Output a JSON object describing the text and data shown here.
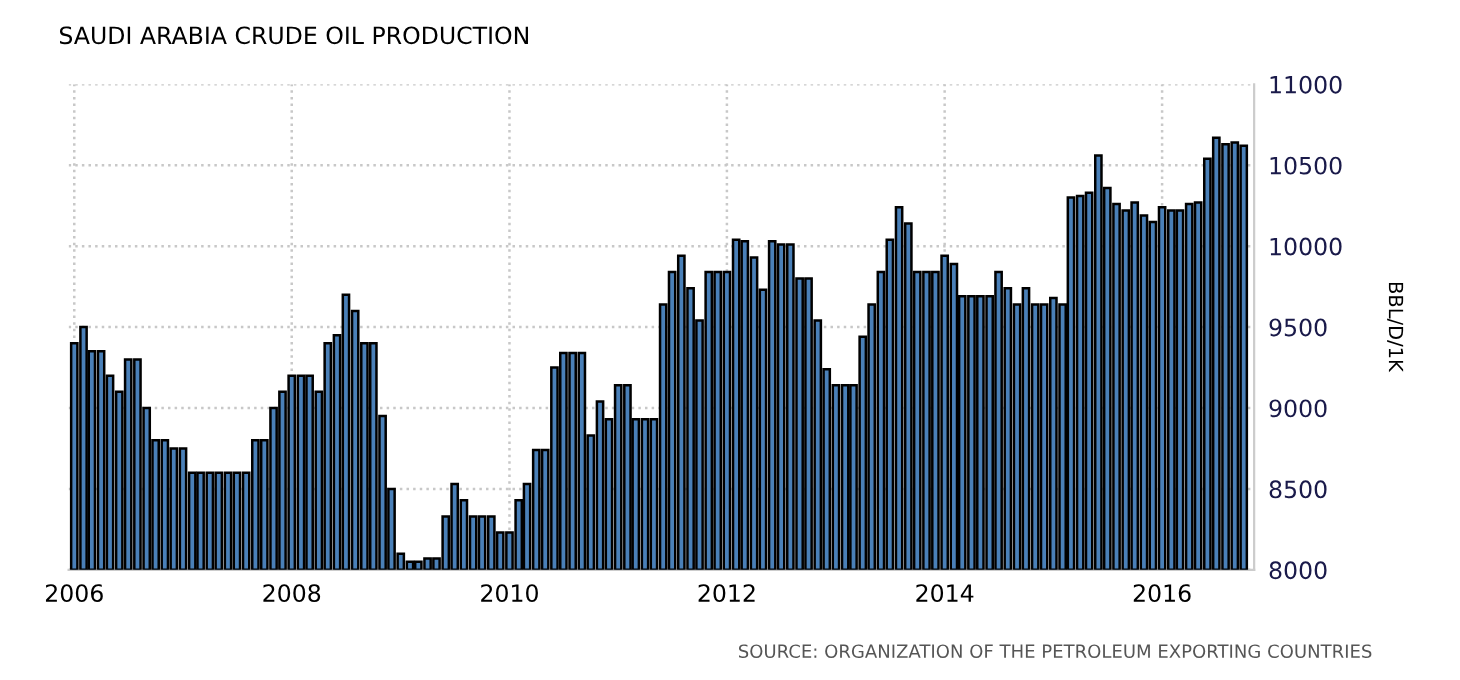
{
  "chart_data": {
    "type": "bar",
    "title": "SAUDI ARABIA CRUDE OIL PRODUCTION",
    "ylabel": "BBL/D/1K",
    "annotations": [
      "SOURCE: ORGANIZATION OF THE PETROLEUM EXPORTING COUNTRIES"
    ],
    "x": [
      "2006-01",
      "2006-02",
      "2006-03",
      "2006-04",
      "2006-05",
      "2006-06",
      "2006-07",
      "2006-08",
      "2006-09",
      "2006-10",
      "2006-11",
      "2006-12",
      "2007-01",
      "2007-02",
      "2007-03",
      "2007-04",
      "2007-05",
      "2007-06",
      "2007-07",
      "2007-08",
      "2007-09",
      "2007-10",
      "2007-11",
      "2007-12",
      "2008-01",
      "2008-02",
      "2008-03",
      "2008-04",
      "2008-05",
      "2008-06",
      "2008-07",
      "2008-08",
      "2008-09",
      "2008-10",
      "2008-11",
      "2008-12",
      "2009-01",
      "2009-02",
      "2009-03",
      "2009-04",
      "2009-05",
      "2009-06",
      "2009-07",
      "2009-08",
      "2009-09",
      "2009-10",
      "2009-11",
      "2009-12",
      "2010-01",
      "2010-02",
      "2010-03",
      "2010-04",
      "2010-05",
      "2010-06",
      "2010-07",
      "2010-08",
      "2010-09",
      "2010-10",
      "2010-11",
      "2010-12",
      "2011-01",
      "2011-02",
      "2011-03",
      "2011-04",
      "2011-05",
      "2011-06",
      "2011-07",
      "2011-08",
      "2011-09",
      "2011-10",
      "2011-11",
      "2011-12",
      "2012-01",
      "2012-02",
      "2012-03",
      "2012-04",
      "2012-05",
      "2012-06",
      "2012-07",
      "2012-08",
      "2012-09",
      "2012-10",
      "2012-11",
      "2012-12",
      "2013-01",
      "2013-02",
      "2013-03",
      "2013-04",
      "2013-05",
      "2013-06",
      "2013-07",
      "2013-08",
      "2013-09",
      "2013-10",
      "2013-11",
      "2013-12",
      "2014-01",
      "2014-02",
      "2014-03",
      "2014-04",
      "2014-05",
      "2014-06",
      "2014-07",
      "2014-08",
      "2014-09",
      "2014-10",
      "2014-11",
      "2014-12",
      "2015-01",
      "2015-02",
      "2015-03",
      "2015-04",
      "2015-05",
      "2015-06",
      "2015-07",
      "2015-08",
      "2015-09",
      "2015-10",
      "2015-11",
      "2015-12",
      "2016-01",
      "2016-02",
      "2016-03",
      "2016-04",
      "2016-05",
      "2016-06",
      "2016-07",
      "2016-08",
      "2016-09",
      "2016-10"
    ],
    "series": [
      {
        "color": "#4a80b8",
        "values": [
          9400,
          9500,
          9350,
          9350,
          9200,
          9100,
          9300,
          9300,
          9000,
          8800,
          8800,
          8750,
          8750,
          8600,
          8600,
          8600,
          8600,
          8600,
          8600,
          8600,
          8800,
          8800,
          9000,
          9100,
          9200,
          9200,
          9200,
          9100,
          9400,
          9450,
          9700,
          9600,
          9400,
          9400,
          8950,
          8500,
          8100,
          8050,
          8050,
          8070,
          8070,
          8330,
          8530,
          8430,
          8330,
          8330,
          8330,
          8230,
          8230,
          8430,
          8530,
          8740,
          8740,
          9250,
          9340,
          9340,
          9340,
          8830,
          9040,
          8930,
          9140,
          9140,
          8930,
          8930,
          8930,
          9640,
          9840,
          9940,
          9740,
          9540,
          9840,
          9840,
          9840,
          10040,
          10030,
          9930,
          9730,
          10030,
          10010,
          10010,
          9800,
          9800,
          9540,
          9240,
          9140,
          9140,
          9140,
          9440,
          9640,
          9840,
          10040,
          10240,
          10140,
          9840,
          9840,
          9840,
          9940,
          9890,
          9690,
          9690,
          9690,
          9690,
          9840,
          9740,
          9640,
          9740,
          9640,
          9640,
          9680,
          9640,
          10300,
          10310,
          10330,
          10560,
          10360,
          10260,
          10220,
          10270,
          10190,
          10150,
          10240,
          10220,
          10220,
          10260,
          10270,
          10540,
          10670,
          10630,
          10640,
          10620
        ]
      }
    ],
    "xlim": [
      "2005-12-13",
      "2016-11-05"
    ],
    "xticks": [
      {
        "value": "2006-01",
        "label": "2006"
      },
      {
        "value": "2008-01",
        "label": "2008"
      },
      {
        "value": "2010-01",
        "label": "2010"
      },
      {
        "value": "2012-01",
        "label": "2012"
      },
      {
        "value": "2014-01",
        "label": "2014"
      },
      {
        "value": "2016-01",
        "label": "2016"
      }
    ],
    "ylim": [
      8000,
      11000
    ],
    "yticks": [
      8000,
      8500,
      9000,
      9500,
      10000,
      10500,
      11000
    ],
    "grid": true,
    "legend": false
  }
}
